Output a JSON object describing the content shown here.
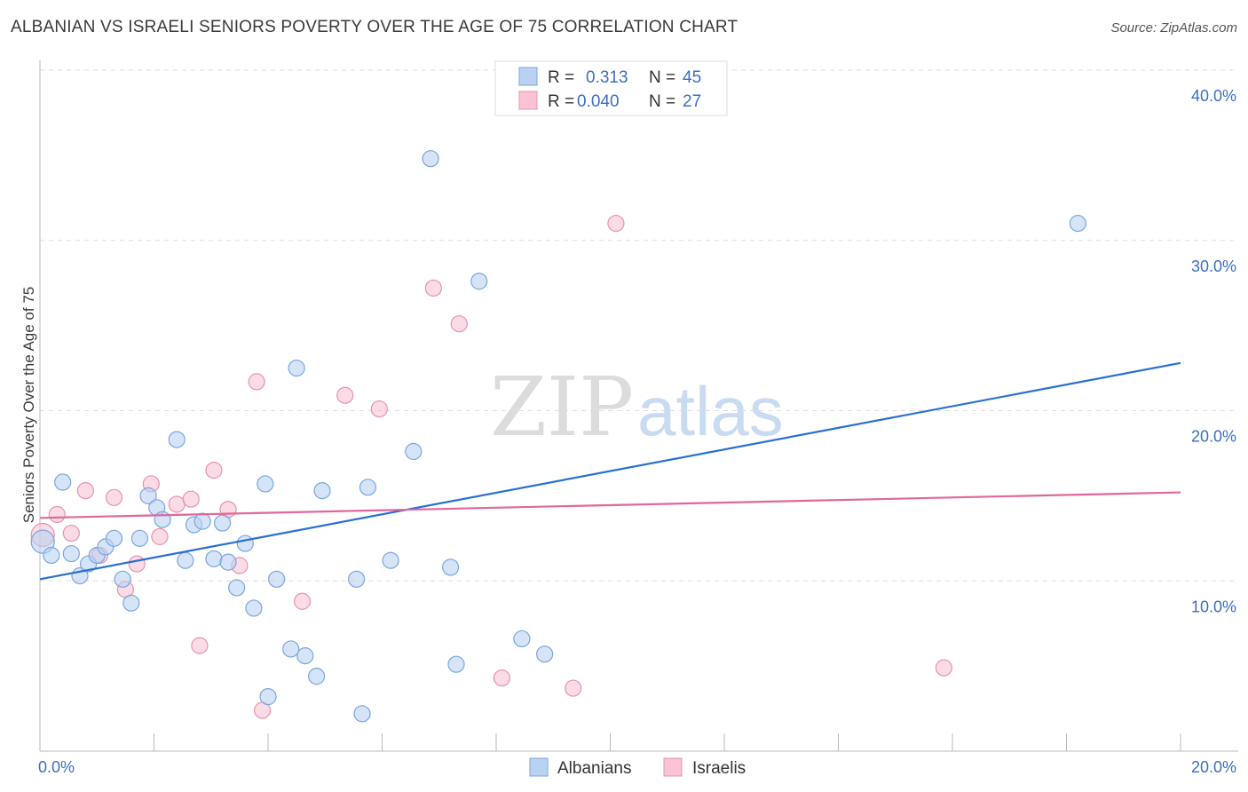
{
  "header": {
    "title": "ALBANIAN VS ISRAELI SENIORS POVERTY OVER THE AGE OF 75 CORRELATION CHART",
    "source": "Source: ZipAtlas.com"
  },
  "colors": {
    "albanians_fill": "#b9d2f2",
    "albanians_stroke": "#7aa6de",
    "albanians_line": "#2a6fcf",
    "israelis_fill": "#f9c3d3",
    "israelis_stroke": "#e893ad",
    "israelis_line": "#e0679a",
    "grid": "#dddddd",
    "axis_text": "#3a6fc4"
  },
  "legend": {
    "albanians": {
      "r_label": "R =",
      "r_value": "0.313",
      "n_label": "N =",
      "n_value": "45"
    },
    "israelis": {
      "r_label": "R =",
      "r_value": "0.040",
      "n_label": "N =",
      "n_value": "27"
    }
  },
  "watermark": {
    "zip": "ZIP",
    "atlas": "atlas"
  },
  "chart_data": {
    "type": "scatter",
    "title": "ALBANIAN VS ISRAELI SENIORS POVERTY OVER THE AGE OF 75 CORRELATION CHART",
    "xlabel": "",
    "ylabel": "Seniors Poverty Over the Age of 75",
    "xlim": [
      0,
      20
    ],
    "ylim": [
      0,
      40
    ],
    "x_tick_labels": [
      "0.0%",
      "20.0%"
    ],
    "y_ticks": [
      10,
      20,
      30,
      40
    ],
    "y_tick_labels": [
      "10.0%",
      "20.0%",
      "30.0%",
      "40.0%"
    ],
    "grid": true,
    "legend_position": "top-center",
    "series": [
      {
        "name": "Albanians",
        "trend": {
          "x": [
            0,
            20
          ],
          "y": [
            10.1,
            22.8
          ]
        },
        "points": [
          [
            0.05,
            12.3
          ],
          [
            0.2,
            11.5
          ],
          [
            0.4,
            15.8
          ],
          [
            0.55,
            11.6
          ],
          [
            0.7,
            10.3
          ],
          [
            0.85,
            11.0
          ],
          [
            1.0,
            11.5
          ],
          [
            1.15,
            12.0
          ],
          [
            1.3,
            12.5
          ],
          [
            1.45,
            10.1
          ],
          [
            1.6,
            8.7
          ],
          [
            1.75,
            12.5
          ],
          [
            1.9,
            15.0
          ],
          [
            2.05,
            14.3
          ],
          [
            2.15,
            13.6
          ],
          [
            2.4,
            18.3
          ],
          [
            2.55,
            11.2
          ],
          [
            2.7,
            13.3
          ],
          [
            2.85,
            13.5
          ],
          [
            3.05,
            11.3
          ],
          [
            3.2,
            13.4
          ],
          [
            3.3,
            11.1
          ],
          [
            3.45,
            9.6
          ],
          [
            3.6,
            12.2
          ],
          [
            3.75,
            8.4
          ],
          [
            3.95,
            15.7
          ],
          [
            4.15,
            10.1
          ],
          [
            4.4,
            6.0
          ],
          [
            4.5,
            22.5
          ],
          [
            4.65,
            5.6
          ],
          [
            4.85,
            4.4
          ],
          [
            4.95,
            15.3
          ],
          [
            4.0,
            3.2
          ],
          [
            5.55,
            10.1
          ],
          [
            5.75,
            15.5
          ],
          [
            6.15,
            11.2
          ],
          [
            5.65,
            2.2
          ],
          [
            6.55,
            17.6
          ],
          [
            6.85,
            34.8
          ],
          [
            7.2,
            10.8
          ],
          [
            7.3,
            5.1
          ],
          [
            7.7,
            27.6
          ],
          [
            8.45,
            6.6
          ],
          [
            8.85,
            5.7
          ],
          [
            18.2,
            31.0
          ]
        ]
      },
      {
        "name": "Israelis",
        "trend": {
          "x": [
            0,
            20
          ],
          "y": [
            13.7,
            15.2
          ]
        },
        "points": [
          [
            0.05,
            12.7
          ],
          [
            0.3,
            13.9
          ],
          [
            0.55,
            12.8
          ],
          [
            0.8,
            15.3
          ],
          [
            1.05,
            11.5
          ],
          [
            1.3,
            14.9
          ],
          [
            1.5,
            9.5
          ],
          [
            1.7,
            11.0
          ],
          [
            1.95,
            15.7
          ],
          [
            2.1,
            12.6
          ],
          [
            2.4,
            14.5
          ],
          [
            2.65,
            14.8
          ],
          [
            2.8,
            6.2
          ],
          [
            3.05,
            16.5
          ],
          [
            3.3,
            14.2
          ],
          [
            3.5,
            10.9
          ],
          [
            3.8,
            21.7
          ],
          [
            3.9,
            2.4
          ],
          [
            4.6,
            8.8
          ],
          [
            5.35,
            20.9
          ],
          [
            5.95,
            20.1
          ],
          [
            6.9,
            27.2
          ],
          [
            7.35,
            25.1
          ],
          [
            8.1,
            4.3
          ],
          [
            9.35,
            3.7
          ],
          [
            10.1,
            31.0
          ],
          [
            15.85,
            4.9
          ]
        ]
      }
    ]
  },
  "bottom_legend": {
    "albanians": "Albanians",
    "israelis": "Israelis"
  }
}
